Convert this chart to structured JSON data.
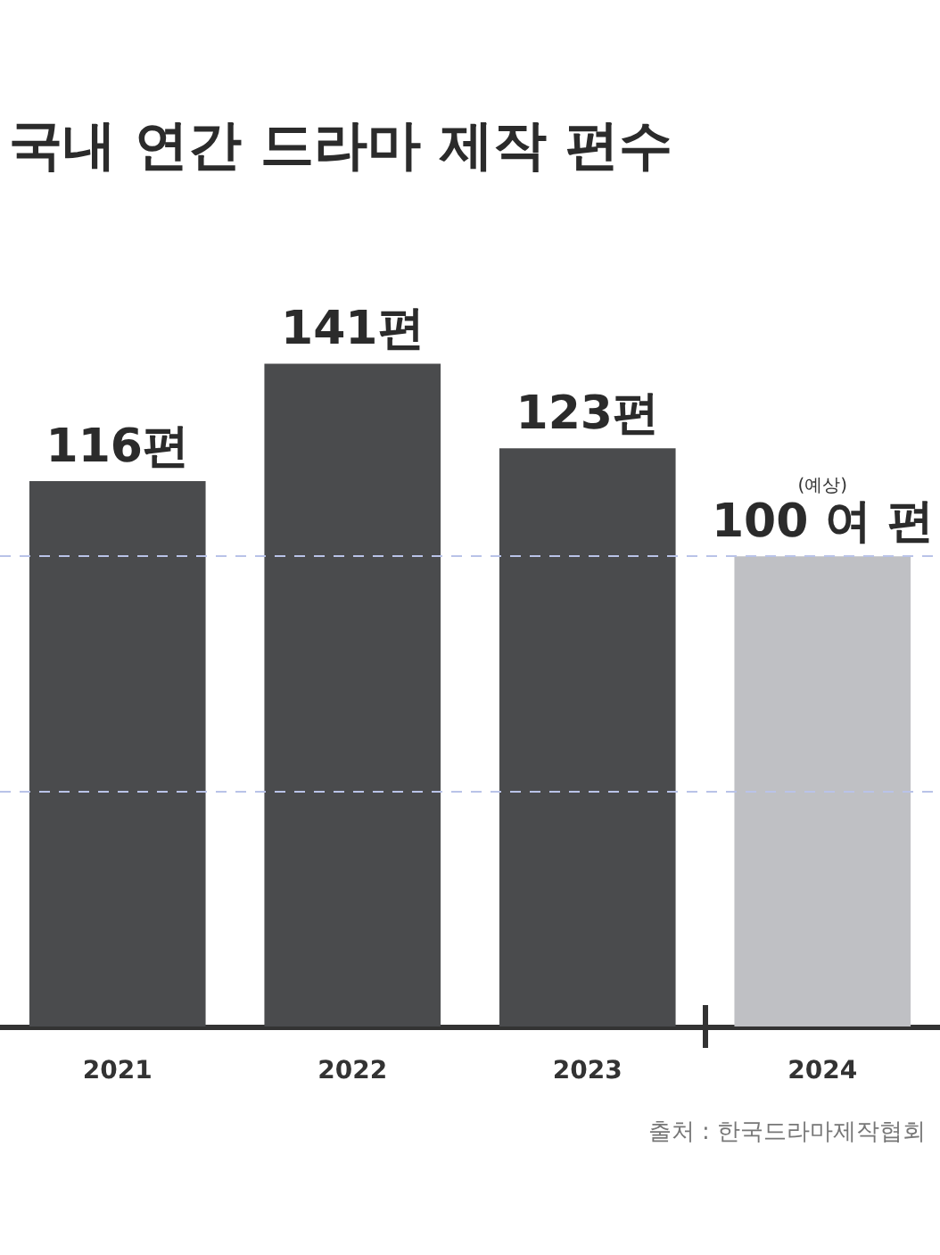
{
  "chart_data": {
    "type": "bar",
    "title": "국내 연간 드라마 제작 편수",
    "categories": [
      "2021",
      "2022",
      "2023",
      "2024"
    ],
    "values": [
      116,
      141,
      123,
      100
    ],
    "colors": [
      "#4a4b4d",
      "#4a4b4d",
      "#4a4b4d",
      "#bfc0c4"
    ],
    "value_labels": [
      "116편",
      "141편",
      "123편",
      "(예상)\n100 여 편"
    ],
    "tick_labels": "x",
    "ref_lines": [
      {
        "axis": "y",
        "value": 50,
        "color": "#b9c3e8",
        "line_style": "dashed"
      },
      {
        "axis": "y",
        "value": 100,
        "color": "#b9c3e8",
        "line_style": "dashed"
      }
    ],
    "annotations": [
      "출처 : 한국드라마제작협회"
    ]
  }
}
